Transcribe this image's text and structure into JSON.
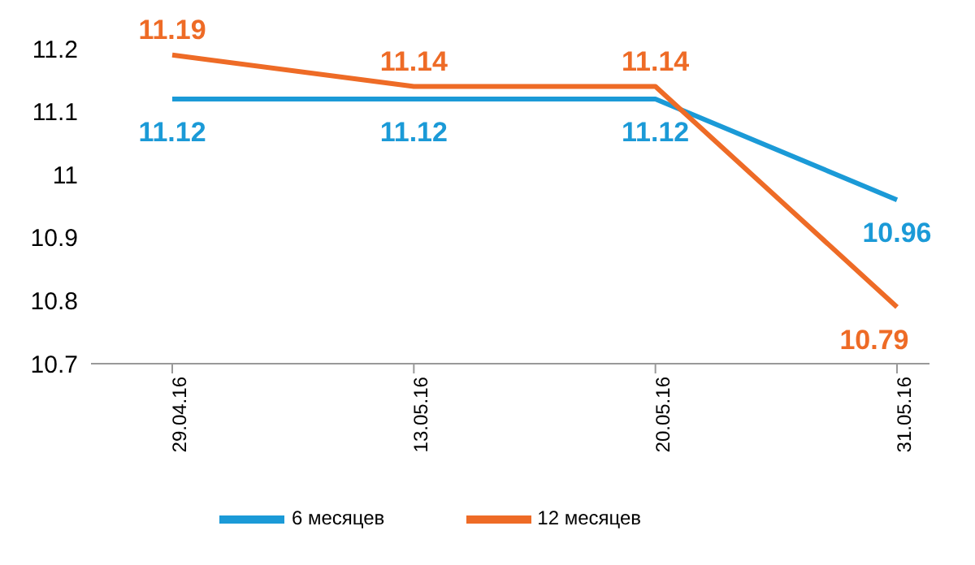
{
  "chart_data": {
    "type": "line",
    "categories": [
      "29.04.16",
      "13.05.16",
      "20.05.16",
      "31.05.16"
    ],
    "series": [
      {
        "name": "6 месяцев",
        "color": "#1b9ad7",
        "values": [
          11.12,
          11.12,
          11.12,
          10.96
        ]
      },
      {
        "name": "12 месяцев",
        "color": "#ee6b26",
        "values": [
          11.19,
          11.14,
          11.14,
          10.79
        ]
      }
    ],
    "ylim": [
      10.7,
      11.2
    ],
    "yticks": [
      10.7,
      10.8,
      10.9,
      11,
      11.1,
      11.2
    ],
    "legend": "bottom",
    "data_labels": true,
    "marker": "none",
    "line_style": "solid"
  }
}
